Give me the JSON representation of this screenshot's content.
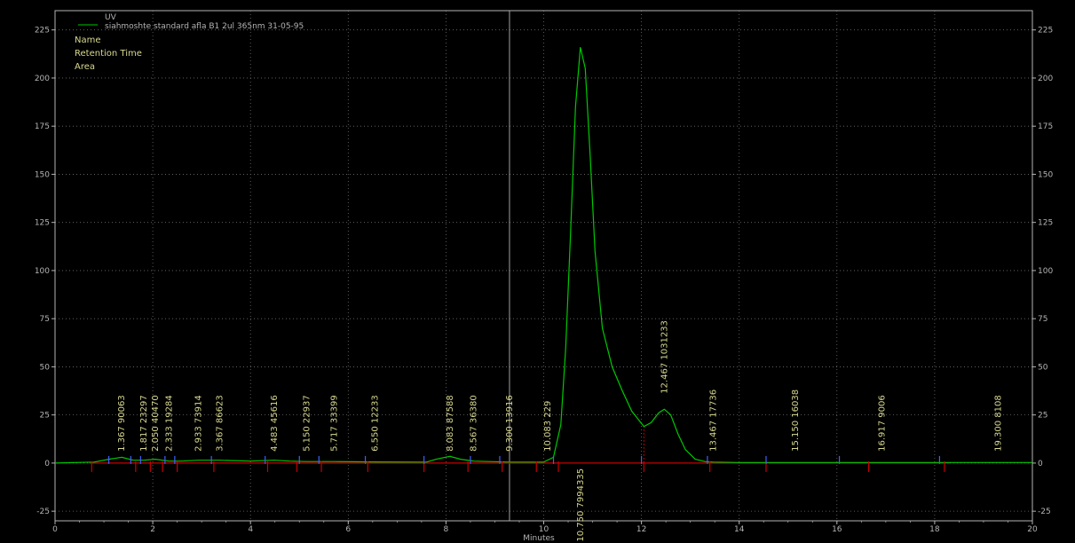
{
  "legend": {
    "series_label": "UV",
    "sample_label": "siahmoshte standard afla B1 2ul 365nm  31-05-95",
    "fields": [
      "Name",
      "Retention Time",
      "Area"
    ]
  },
  "colors": {
    "background": "#000000",
    "trace": "#00c800",
    "baseline": "#c80000",
    "grid": "#6e6e6e",
    "axis": "#b4b4b4",
    "label": "#d8d890",
    "marker_blue": "#4060ff",
    "cursor": "#a0a0a0"
  },
  "chart_data": {
    "type": "line",
    "xlabel": "Minutes",
    "ylabel": "",
    "xlim": [
      0,
      20
    ],
    "ylim": [
      -30,
      235
    ],
    "x_ticks": [
      0,
      2,
      4,
      6,
      8,
      10,
      12,
      14,
      16,
      18,
      20
    ],
    "y_ticks": [
      -25,
      0,
      25,
      50,
      75,
      100,
      125,
      150,
      175,
      200,
      225
    ],
    "grid": true,
    "legend_position": "top-left",
    "cursor_line_x": 9.3,
    "series": [
      {
        "name": "UV",
        "x": [
          0,
          0.8,
          1.1,
          1.367,
          1.6,
          1.817,
          2.05,
          2.333,
          2.6,
          2.933,
          3.367,
          4.0,
          4.483,
          4.8,
          5.15,
          5.717,
          6.55,
          7.6,
          7.8,
          8.083,
          8.3,
          8.567,
          9.3,
          10.0,
          10.2,
          10.35,
          10.45,
          10.55,
          10.65,
          10.75,
          10.85,
          10.95,
          11.05,
          11.2,
          11.4,
          11.6,
          11.8,
          12.05,
          12.2,
          12.35,
          12.467,
          12.6,
          12.75,
          12.9,
          13.1,
          13.3,
          13.467,
          14.0,
          15.15,
          16.917,
          18.0,
          19.3,
          20.0
        ],
        "y": [
          0,
          0.5,
          2,
          3,
          1.5,
          1.5,
          2,
          1,
          1,
          1.5,
          1.5,
          1,
          1.5,
          1,
          0.8,
          0.8,
          0.6,
          0.5,
          2,
          3.5,
          2,
          1,
          0.5,
          0.5,
          3,
          20,
          60,
          120,
          185,
          216,
          205,
          160,
          110,
          70,
          50,
          38,
          27,
          19,
          21,
          26,
          28,
          25,
          15,
          7,
          2,
          0.8,
          0.5,
          0.3,
          0.3,
          0.3,
          0.3,
          0.3,
          0.3
        ]
      }
    ],
    "peaks": [
      {
        "rt": "1.367",
        "area": "90063",
        "x": 1.367
      },
      {
        "rt": "1.817",
        "area": "23297",
        "x": 1.817
      },
      {
        "rt": "2.050",
        "area": "40470",
        "x": 2.05
      },
      {
        "rt": "2.333",
        "area": "19284",
        "x": 2.333
      },
      {
        "rt": "2.933",
        "area": "73914",
        "x": 2.933
      },
      {
        "rt": "3.367",
        "area": "86623",
        "x": 3.367
      },
      {
        "rt": "4.483",
        "area": "45616",
        "x": 4.483
      },
      {
        "rt": "5.150",
        "area": "22937",
        "x": 5.15
      },
      {
        "rt": "5.717",
        "area": "33399",
        "x": 5.717
      },
      {
        "rt": "6.550",
        "area": "12233",
        "x": 6.55
      },
      {
        "rt": "8.083",
        "area": "87588",
        "x": 8.083
      },
      {
        "rt": "8.567",
        "area": "36380",
        "x": 8.567
      },
      {
        "rt": "9.300",
        "area": "13916",
        "x": 9.3
      },
      {
        "rt": "10.083",
        "area": "229",
        "x": 10.083
      },
      {
        "rt": "10.750",
        "area": "7994335",
        "x": 10.75,
        "below": true
      },
      {
        "rt": "12.467",
        "area": "1031233",
        "x": 12.467
      },
      {
        "rt": "13.467",
        "area": "17736",
        "x": 13.467
      },
      {
        "rt": "15.150",
        "area": "16038",
        "x": 15.15
      },
      {
        "rt": "16.917",
        "area": "9006",
        "x": 16.917
      },
      {
        "rt": "19.300",
        "area": "8108",
        "x": 19.3
      }
    ],
    "red_markers_x": [
      0.75,
      1.65,
      1.95,
      2.2,
      2.5,
      3.25,
      4.35,
      4.95,
      5.45,
      6.4,
      7.55,
      8.45,
      9.15,
      9.85,
      10.3,
      12.05,
      13.4,
      14.55,
      16.65,
      18.2
    ],
    "blue_markers_x": [
      1.1,
      1.55,
      1.75,
      2.25,
      2.45,
      3.2,
      4.3,
      5.0,
      5.4,
      6.35,
      7.55,
      8.5,
      9.1,
      10.2,
      12.0,
      13.35,
      14.55,
      16.05,
      18.1
    ]
  }
}
